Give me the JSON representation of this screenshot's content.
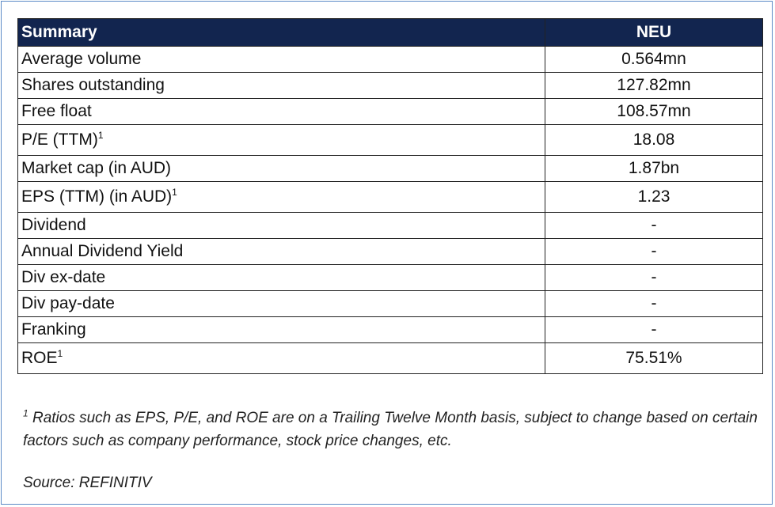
{
  "table": {
    "header": {
      "label": "Summary",
      "value": "NEU"
    },
    "rows": [
      {
        "label": "Average volume",
        "value": "0.564mn"
      },
      {
        "label": "Shares outstanding",
        "value": "127.82mn"
      },
      {
        "label": "Free float",
        "value": "108.57mn"
      },
      {
        "label": "P/E (TTM)",
        "sup": "1",
        "value": "18.08"
      },
      {
        "label": "Market cap (in AUD)",
        "value": "1.87bn"
      },
      {
        "label": "EPS (TTM) (in AUD)",
        "sup": "1",
        "value": "1.23"
      },
      {
        "label": "Dividend",
        "value": "-"
      },
      {
        "label": "Annual Dividend Yield",
        "value": "-"
      },
      {
        "label": "Div ex-date",
        "value": "-"
      },
      {
        "label": "Div pay-date",
        "value": "-"
      },
      {
        "label": "Franking",
        "value": "-"
      },
      {
        "label": "ROE",
        "sup": "1",
        "value": "75.51%"
      }
    ]
  },
  "footnote": {
    "marker": "1",
    "text": "Ratios such as EPS, P/E, and ROE are on a Trailing Twelve Month basis, subject to change based on certain factors such as company performance, stock price changes, etc."
  },
  "source": "Source: REFINITIV",
  "colors": {
    "header_bg": "#12254f",
    "header_text": "#ffffff",
    "frame_border": "#5b8ac6"
  }
}
